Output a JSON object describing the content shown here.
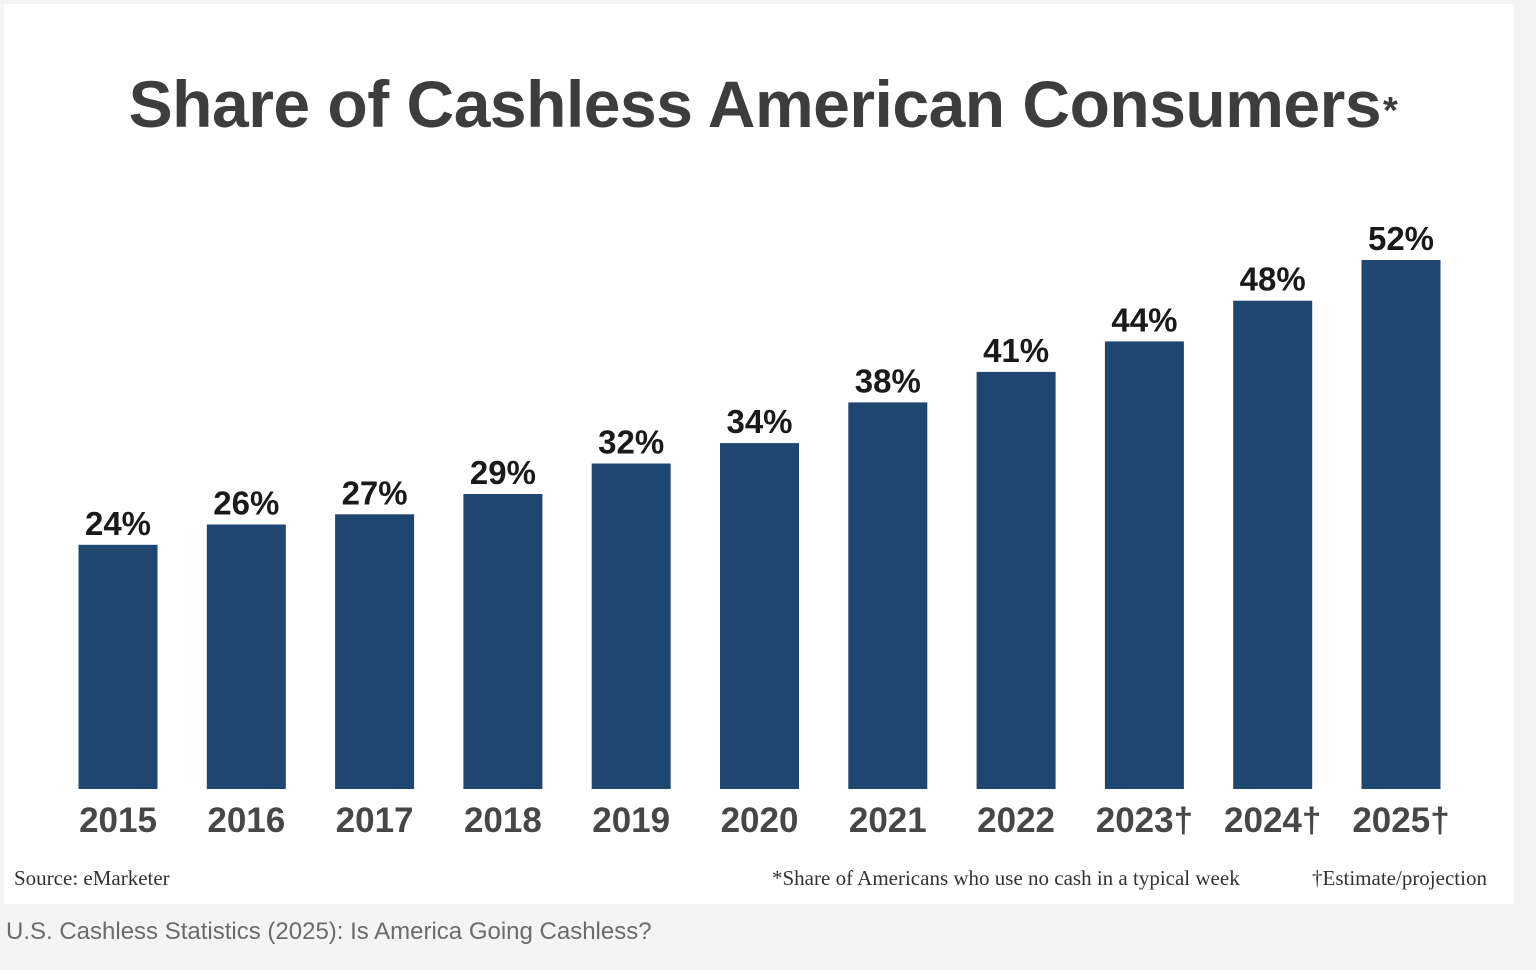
{
  "chart_data": {
    "type": "bar",
    "title": "Share of Cashless American Consumers",
    "title_marker": "*",
    "categories": [
      "2015",
      "2016",
      "2017",
      "2018",
      "2019",
      "2020",
      "2021",
      "2022",
      "2023†",
      "2024†",
      "2025†"
    ],
    "values": [
      24,
      26,
      27,
      29,
      32,
      34,
      38,
      41,
      44,
      48,
      52
    ],
    "value_labels": [
      "24%",
      "26%",
      "27%",
      "29%",
      "32%",
      "34%",
      "38%",
      "41%",
      "44%",
      "48%",
      "52%"
    ],
    "unit": "%",
    "xlabel": "",
    "ylabel": "",
    "ylim": [
      0,
      52
    ],
    "grid": false,
    "legend": "none",
    "colors": {
      "bar": "#1f4670",
      "title": "#3d3d3d",
      "category_label": "#474747"
    }
  },
  "footer": {
    "source": "Source: eMarketer",
    "footnote_star": "*Share of Americans who use no cash in a typical week",
    "footnote_dagger": "†Estimate/projection"
  },
  "caption": "U.S. Cashless Statistics (2025): Is America Going Cashless?"
}
